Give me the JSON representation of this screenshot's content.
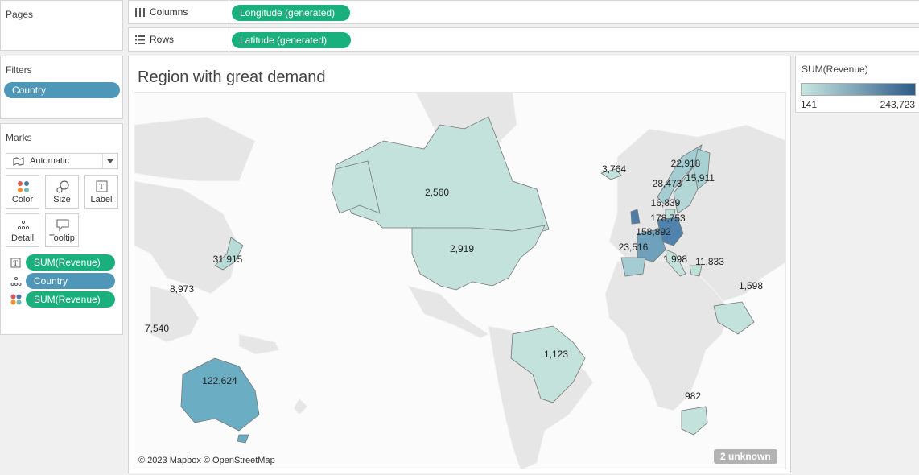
{
  "pages": {
    "title": "Pages"
  },
  "columns": {
    "label": "Columns",
    "pill": "Longitude (generated)"
  },
  "rows": {
    "label": "Rows",
    "pill": "Latitude (generated)"
  },
  "filters": {
    "title": "Filters",
    "pill": "Country"
  },
  "marks": {
    "title": "Marks",
    "type_select": "Automatic",
    "buttons": {
      "color": "Color",
      "size": "Size",
      "label": "Label",
      "detail": "Detail",
      "tooltip": "Tooltip"
    },
    "fields": [
      {
        "kind": "label",
        "name": "SUM(Revenue)"
      },
      {
        "kind": "detail",
        "name": "Country"
      },
      {
        "kind": "color",
        "name": "SUM(Revenue)"
      }
    ]
  },
  "legend": {
    "title": "SUM(Revenue)",
    "min": "141",
    "max": "243,723",
    "color_low": "#c9e7e1",
    "color_high": "#2d5b88"
  },
  "viz": {
    "title": "Region with great demand",
    "attribution": "© 2023 Mapbox © OpenStreetMap",
    "unknown_badge": "2 unknown"
  },
  "chart_data": {
    "type": "map",
    "measure": "SUM(Revenue)",
    "labels": [
      {
        "value": "2,560",
        "region": "Canada"
      },
      {
        "value": "2,919",
        "region": "United States"
      },
      {
        "value": "1,123",
        "region": "Brazil"
      },
      {
        "value": "122,624",
        "region": "Australia"
      },
      {
        "value": "31,915",
        "region": "Japan"
      },
      {
        "value": "8,973",
        "region": "Taiwan"
      },
      {
        "value": "7,540",
        "region": "Philippines"
      },
      {
        "value": "3,764",
        "region": "Iceland"
      },
      {
        "value": "22,918",
        "region": "Finland"
      },
      {
        "value": "15,911",
        "region": "Sweden"
      },
      {
        "value": "28,473",
        "region": "Norway"
      },
      {
        "value": "16,839",
        "region": "Denmark"
      },
      {
        "value": "178,753",
        "region": "Germany"
      },
      {
        "value": "158,892",
        "region": "France"
      },
      {
        "value": "23,516",
        "region": "Spain"
      },
      {
        "value": "1,998",
        "region": "Italy"
      },
      {
        "value": "11,833",
        "region": "Greece"
      },
      {
        "value": "1,598",
        "region": "Saudi Arabia"
      },
      {
        "value": "982",
        "region": "South Africa"
      }
    ]
  }
}
